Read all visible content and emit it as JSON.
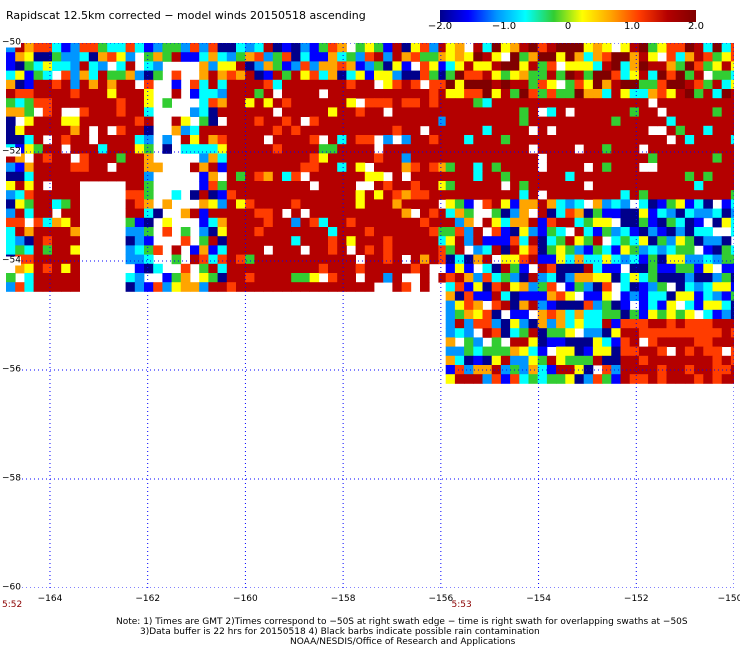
{
  "title": "Rapidscat 12.5km corrected − model winds 20150518 ascending",
  "colorbar": {
    "labels": [
      "−2.0",
      "−1.0",
      "0",
      "1.0",
      "2.0"
    ],
    "values": [
      -2.0,
      -1.0,
      0,
      1.0,
      2.0
    ],
    "colors": [
      "#00008b",
      "#0000ff",
      "#0096ff",
      "#00ffff",
      "#32cd32",
      "#ffff00",
      "#ffa500",
      "#ff3c00",
      "#b40000",
      "#800000"
    ]
  },
  "axes": {
    "lon_ticks": [
      {
        "value": -164,
        "label": "−164"
      },
      {
        "value": -162,
        "label": "−162"
      },
      {
        "value": -160,
        "label": "−160"
      },
      {
        "value": -158,
        "label": "−158"
      },
      {
        "value": -156,
        "label": "−156"
      },
      {
        "value": -154,
        "label": "−154"
      },
      {
        "value": -152,
        "label": "−152"
      },
      {
        "value": -150,
        "label": "−150"
      }
    ],
    "lat_ticks": [
      {
        "value": -50,
        "label": "−50"
      },
      {
        "value": -52,
        "label": "−52"
      },
      {
        "value": -54,
        "label": "−54"
      },
      {
        "value": -56,
        "label": "−56"
      },
      {
        "value": -58,
        "label": "−58"
      },
      {
        "value": -60,
        "label": "−60"
      }
    ],
    "lon_range": [
      -164.9,
      -150
    ],
    "lat_range": [
      -60,
      -50
    ]
  },
  "swath_times": [
    {
      "label": "5:52",
      "lon": -164.9
    },
    {
      "label": "5:53",
      "lon": -155.7
    }
  ],
  "swaths": [
    {
      "lon_min": -164.9,
      "lon_max": -155.9,
      "lat_top": -50,
      "lat_bottom": -54.5,
      "dominant": "positive"
    },
    {
      "lon_min": -155.9,
      "lon_max": -150,
      "lat_top": -50,
      "lat_bottom": -56.2,
      "dominant": "mixed"
    }
  ],
  "notes": {
    "line1": "Note: 1) Times are GMT 2)Times correspond to −50S at right swath edge − time is right swath for overlapping swaths at −50S",
    "line2": "3)Data buffer is 22 hrs for 20150518 4) Black barbs indicate possible rain contamination",
    "line3": "NOAA/NESDIS/Office of Research and Applications"
  }
}
